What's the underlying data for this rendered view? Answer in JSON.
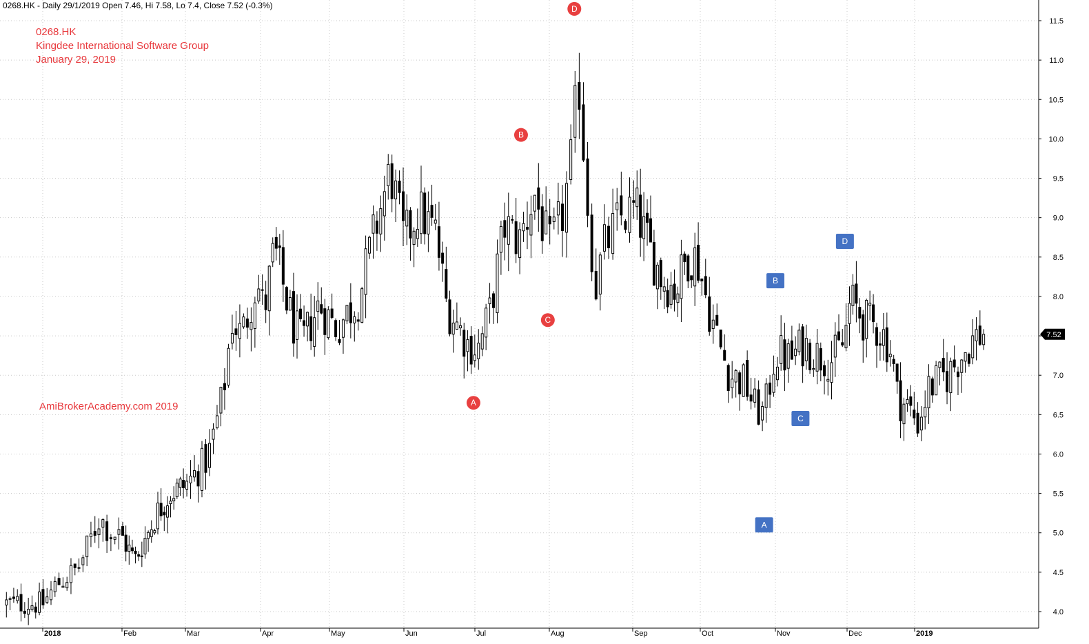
{
  "header": {
    "info": "0268.HK - Daily 29/1/2019 Open 7.46, Hi 7.58, Lo 7.4, Close 7.52 (-0.3%)"
  },
  "title_block": {
    "line1": "0268.HK",
    "line2": "Kingdee International Software Group",
    "line3": "January 29, 2019"
  },
  "watermark": "AmiBrokerAcademy.com  2019",
  "colors": {
    "annotation_text": "#e8383c",
    "marker_red": "#e84040",
    "marker_blue": "#4472c4",
    "candle": "#000000",
    "grid": "#c8c8c8",
    "last_price_bg": "#000000"
  },
  "chart_data": {
    "type": "candlestick",
    "symbol": "0268.HK",
    "period": "Daily",
    "ylim": [
      3.85,
      11.65
    ],
    "grid": true,
    "y_ticks": [
      "4.0",
      "4.5",
      "5.0",
      "5.5",
      "6.0",
      "6.5",
      "7.0",
      "7.5",
      "8.0",
      "8.5",
      "9.0",
      "9.5",
      "10.0",
      "10.5",
      "11.0",
      "11.5"
    ],
    "x_ticks": [
      {
        "label": "2018",
        "month_index": 0,
        "bold": true
      },
      {
        "label": "Feb",
        "month_index": 1,
        "bold": false
      },
      {
        "label": "Mar",
        "month_index": 2,
        "bold": false
      },
      {
        "label": "Apr",
        "month_index": 3,
        "bold": false
      },
      {
        "label": "May",
        "month_index": 4,
        "bold": false
      },
      {
        "label": "Jun",
        "month_index": 5,
        "bold": false
      },
      {
        "label": "Jul",
        "month_index": 6,
        "bold": false
      },
      {
        "label": "Aug",
        "month_index": 7,
        "bold": false
      },
      {
        "label": "Sep",
        "month_index": 8,
        "bold": false
      },
      {
        "label": "Oct",
        "month_index": 9,
        "bold": false
      },
      {
        "label": "Nov",
        "month_index": 10,
        "bold": false
      },
      {
        "label": "Dec",
        "month_index": 11,
        "bold": false
      },
      {
        "label": "2019",
        "month_index": 12,
        "bold": true
      }
    ],
    "last_price": "7.52",
    "last_close": 7.52,
    "path_points": [
      [
        0,
        4.1
      ],
      [
        0.18,
        4.35
      ],
      [
        0.45,
        4.55
      ],
      [
        0.72,
        5.2
      ],
      [
        0.85,
        5.0
      ],
      [
        1.0,
        4.95
      ],
      [
        1.2,
        4.65
      ],
      [
        1.35,
        4.9
      ],
      [
        1.55,
        5.25
      ],
      [
        1.75,
        5.5
      ],
      [
        2.0,
        5.6
      ],
      [
        2.3,
        5.95
      ],
      [
        2.5,
        6.75
      ],
      [
        2.62,
        7.7
      ],
      [
        2.75,
        7.5
      ],
      [
        2.95,
        8.2
      ],
      [
        3.05,
        7.8
      ],
      [
        3.2,
        8.6
      ],
      [
        3.45,
        7.7
      ],
      [
        3.6,
        7.4
      ],
      [
        3.85,
        7.9
      ],
      [
        4.1,
        7.6
      ],
      [
        4.4,
        8.0
      ],
      [
        4.6,
        8.8
      ],
      [
        4.82,
        9.6
      ],
      [
        5.0,
        8.7
      ],
      [
        5.2,
        9.1
      ],
      [
        5.45,
        8.8
      ],
      [
        5.6,
        7.9
      ],
      [
        5.9,
        7.4
      ],
      [
        6.05,
        7.35
      ],
      [
        6.2,
        7.8
      ],
      [
        6.4,
        8.9
      ],
      [
        6.6,
        8.7
      ],
      [
        6.8,
        9.3
      ],
      [
        7.0,
        8.6
      ],
      [
        7.15,
        9.0
      ],
      [
        7.25,
        9.6
      ],
      [
        7.35,
        10.8
      ],
      [
        7.45,
        9.3
      ],
      [
        7.55,
        8.1
      ],
      [
        7.65,
        8.6
      ],
      [
        7.85,
        9.0
      ],
      [
        8.05,
        9.1
      ],
      [
        8.25,
        8.6
      ],
      [
        8.45,
        8.2
      ],
      [
        8.65,
        8.1
      ],
      [
        8.8,
        8.5
      ],
      [
        8.95,
        8.5
      ],
      [
        9.1,
        7.9
      ],
      [
        9.25,
        7.4
      ],
      [
        9.4,
        7.0
      ],
      [
        9.6,
        6.9
      ],
      [
        9.72,
        6.6
      ],
      [
        9.85,
        6.5
      ],
      [
        10.0,
        7.3
      ],
      [
        10.2,
        7.2
      ],
      [
        10.4,
        7.4
      ],
      [
        10.6,
        7.25
      ],
      [
        10.8,
        7.2
      ],
      [
        10.95,
        7.4
      ],
      [
        11.05,
        7.95
      ],
      [
        11.25,
        7.7
      ],
      [
        11.45,
        7.6
      ],
      [
        11.55,
        7.5
      ],
      [
        11.65,
        7.3
      ],
      [
        11.75,
        6.7
      ],
      [
        11.9,
        6.6
      ],
      [
        12.05,
        6.4
      ],
      [
        12.2,
        6.85
      ],
      [
        12.45,
        7.0
      ],
      [
        12.6,
        7.2
      ],
      [
        12.8,
        7.45
      ],
      [
        12.95,
        7.55
      ]
    ],
    "candle_count": 268,
    "annotations_red": [
      {
        "label": "A",
        "month_pos": 5.98,
        "price": 6.65
      },
      {
        "label": "B",
        "month_pos": 6.62,
        "price": 10.05
      },
      {
        "label": "C",
        "month_pos": 6.98,
        "price": 7.7
      },
      {
        "label": "D",
        "month_pos": 7.3,
        "price": 11.65
      }
    ],
    "annotations_blue": [
      {
        "label": "A",
        "month_pos": 9.85,
        "price": 5.1
      },
      {
        "label": "B",
        "month_pos": 10.0,
        "price": 8.2
      },
      {
        "label": "C",
        "month_pos": 10.35,
        "price": 6.45
      },
      {
        "label": "D",
        "month_pos": 10.97,
        "price": 8.7
      }
    ]
  }
}
